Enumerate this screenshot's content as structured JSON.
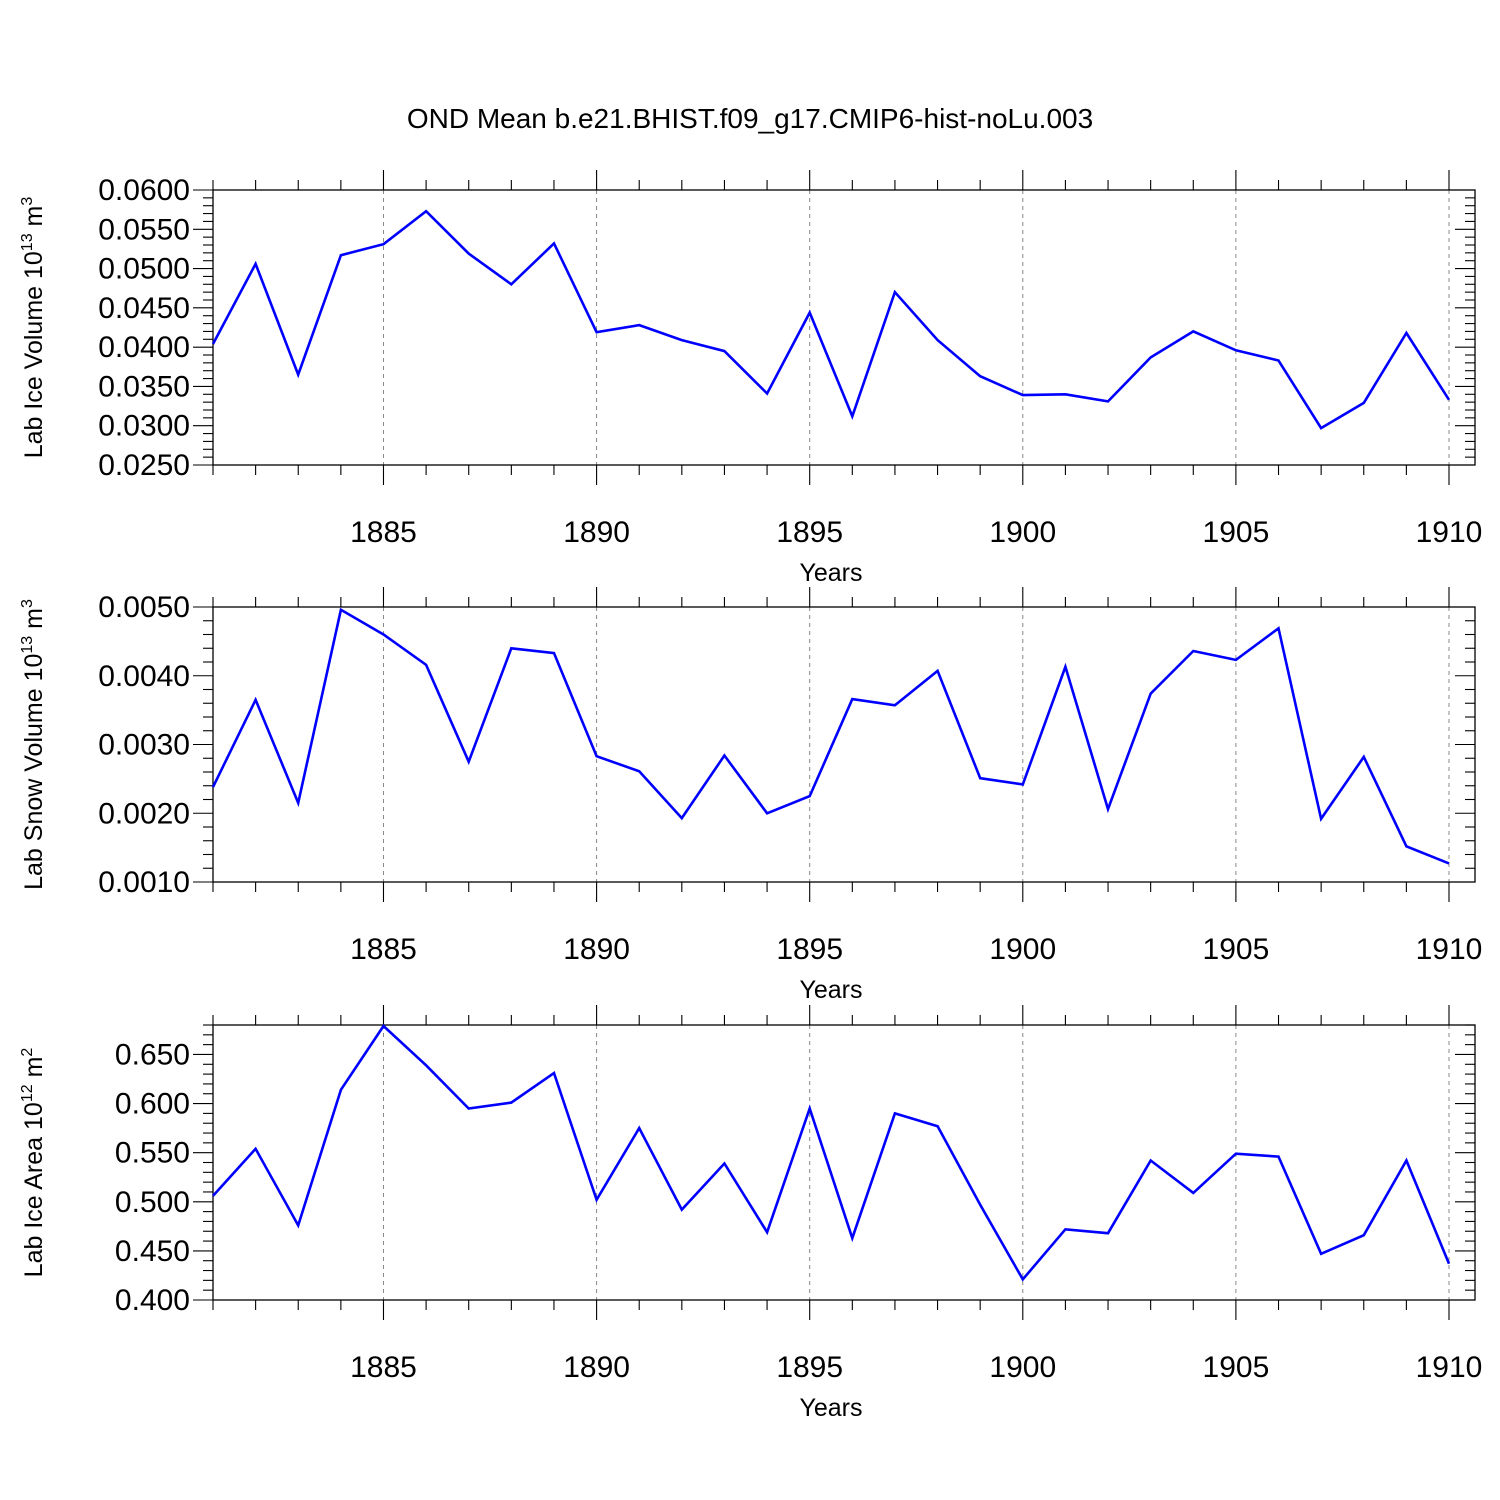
{
  "title": "OND Mean b.e21.BHIST.f09_g17.CMIP6-hist-noLu.003",
  "colors": {
    "line": "#0000ff",
    "axis": "#000000",
    "grid": "#888888"
  },
  "chart_data": [
    {
      "type": "line",
      "ylabel": {
        "text": "Lab Ice Volume 10",
        "sup": "13",
        "unit": " m",
        "unit_sup": "3"
      },
      "xlabel": "Years",
      "xlim": [
        1881,
        1910
      ],
      "ylim": [
        0.025,
        0.06
      ],
      "yticks": [
        0.025,
        0.03,
        0.035,
        0.04,
        0.045,
        0.05,
        0.055,
        0.06
      ],
      "ytick_labels": [
        "0.0250",
        "0.0300",
        "0.0350",
        "0.0400",
        "0.0450",
        "0.0500",
        "0.0550",
        "0.0600"
      ],
      "xticks": [
        1885,
        1890,
        1895,
        1900,
        1905,
        1910
      ],
      "xtick_labels": [
        "1885",
        "1890",
        "1895",
        "1900",
        "1905",
        "1910"
      ],
      "grid": "vertical dashed at labeled years",
      "x": [
        1881,
        1882,
        1883,
        1884,
        1885,
        1886,
        1887,
        1888,
        1889,
        1890,
        1891,
        1892,
        1893,
        1894,
        1895,
        1896,
        1897,
        1898,
        1899,
        1900,
        1901,
        1902,
        1903,
        1904,
        1905,
        1906,
        1907,
        1908,
        1909,
        1910
      ],
      "values": [
        0.0404,
        0.0506,
        0.0365,
        0.0517,
        0.0531,
        0.0573,
        0.0519,
        0.048,
        0.0532,
        0.0419,
        0.0428,
        0.0409,
        0.0395,
        0.0341,
        0.0444,
        0.0312,
        0.047,
        0.0409,
        0.0363,
        0.0339,
        0.034,
        0.0331,
        0.0387,
        0.042,
        0.0396,
        0.0383,
        0.0297,
        0.0329,
        0.0418,
        0.0333
      ]
    },
    {
      "type": "line",
      "ylabel": {
        "text": "Lab Snow Volume 10",
        "sup": "13",
        "unit": " m",
        "unit_sup": "3"
      },
      "xlabel": "Years",
      "xlim": [
        1881,
        1910
      ],
      "ylim": [
        0.001,
        0.005
      ],
      "yticks": [
        0.001,
        0.002,
        0.003,
        0.004,
        0.005
      ],
      "ytick_labels": [
        "0.0010",
        "0.0020",
        "0.0030",
        "0.0040",
        "0.0050"
      ],
      "xticks": [
        1885,
        1890,
        1895,
        1900,
        1905,
        1910
      ],
      "xtick_labels": [
        "1885",
        "1890",
        "1895",
        "1900",
        "1905",
        "1910"
      ],
      "grid": "vertical dashed at labeled years",
      "x": [
        1881,
        1882,
        1883,
        1884,
        1885,
        1886,
        1887,
        1888,
        1889,
        1890,
        1891,
        1892,
        1893,
        1894,
        1895,
        1896,
        1897,
        1898,
        1899,
        1900,
        1901,
        1902,
        1903,
        1904,
        1905,
        1906,
        1907,
        1908,
        1909,
        1910
      ],
      "values": [
        0.00238,
        0.00365,
        0.00215,
        0.00496,
        0.0046,
        0.00416,
        0.00275,
        0.0044,
        0.00433,
        0.00283,
        0.00261,
        0.00193,
        0.00284,
        0.002,
        0.00225,
        0.00366,
        0.00357,
        0.00407,
        0.00251,
        0.00242,
        0.00413,
        0.00206,
        0.00374,
        0.00436,
        0.00423,
        0.00469,
        0.00192,
        0.00282,
        0.00152,
        0.00127
      ]
    },
    {
      "type": "line",
      "ylabel": {
        "text": "Lab Ice Area 10",
        "sup": "12",
        "unit": " m",
        "unit_sup": "2"
      },
      "xlabel": "Years",
      "xlim": [
        1881,
        1910
      ],
      "ylim": [
        0.4,
        0.68
      ],
      "yticks": [
        0.4,
        0.45,
        0.5,
        0.55,
        0.6,
        0.65
      ],
      "ytick_labels": [
        "0.400",
        "0.450",
        "0.500",
        "0.550",
        "0.600",
        "0.650"
      ],
      "xticks": [
        1885,
        1890,
        1895,
        1900,
        1905,
        1910
      ],
      "xtick_labels": [
        "1885",
        "1890",
        "1895",
        "1900",
        "1905",
        "1910"
      ],
      "grid": "vertical dashed at labeled years",
      "x": [
        1881,
        1882,
        1883,
        1884,
        1885,
        1886,
        1887,
        1888,
        1889,
        1890,
        1891,
        1892,
        1893,
        1894,
        1895,
        1896,
        1897,
        1898,
        1899,
        1900,
        1901,
        1902,
        1903,
        1904,
        1905,
        1906,
        1907,
        1908,
        1909,
        1910
      ],
      "values": [
        0.506,
        0.554,
        0.476,
        0.614,
        0.679,
        0.639,
        0.595,
        0.601,
        0.631,
        0.502,
        0.575,
        0.492,
        0.539,
        0.469,
        0.595,
        0.463,
        0.59,
        0.577,
        0.497,
        0.421,
        0.472,
        0.468,
        0.542,
        0.509,
        0.549,
        0.546,
        0.447,
        0.466,
        0.542,
        0.437
      ]
    }
  ]
}
